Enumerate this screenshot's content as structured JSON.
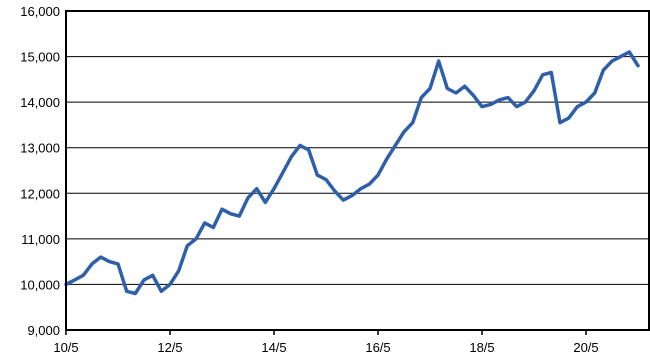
{
  "chart_data": {
    "type": "line",
    "title": "",
    "xlabel": "",
    "ylabel": "",
    "ylim": [
      9000,
      16000
    ],
    "y_ticks": [
      "9,000",
      "10,000",
      "11,000",
      "12,000",
      "13,000",
      "14,000",
      "15,000",
      "16,000"
    ],
    "x_ticks": [
      "10/5",
      "12/5",
      "14/5",
      "16/5",
      "18/5",
      "20/5"
    ],
    "grid": "horizontal",
    "legend": "none",
    "series": [
      {
        "color": "#2f5fa8",
        "x": [
          "2010-05",
          "2010-07",
          "2010-09",
          "2010-11",
          "2011-01",
          "2011-03",
          "2011-05",
          "2011-07",
          "2011-09",
          "2011-11",
          "2012-01",
          "2012-03",
          "2012-05",
          "2012-07",
          "2012-09",
          "2012-11",
          "2013-01",
          "2013-03",
          "2013-05",
          "2013-07",
          "2013-09",
          "2013-11",
          "2014-01",
          "2014-03",
          "2014-05",
          "2014-07",
          "2014-09",
          "2014-11",
          "2015-01",
          "2015-03",
          "2015-05",
          "2015-07",
          "2015-09",
          "2015-11",
          "2016-01",
          "2016-03",
          "2016-05",
          "2016-07",
          "2016-09",
          "2016-11",
          "2017-01",
          "2017-03",
          "2017-05",
          "2017-07",
          "2017-09",
          "2017-11",
          "2018-01",
          "2018-03",
          "2018-05",
          "2018-07",
          "2018-09",
          "2018-11",
          "2019-01",
          "2019-03",
          "2019-05",
          "2019-07",
          "2019-09",
          "2019-11",
          "2020-01",
          "2020-03",
          "2020-05",
          "2020-07",
          "2020-09",
          "2020-11",
          "2021-01",
          "2021-03",
          "2021-05"
        ],
        "y": [
          10000,
          10100,
          10200,
          10450,
          10600,
          10500,
          10450,
          9850,
          9800,
          10100,
          10200,
          9850,
          10000,
          10300,
          10850,
          11000,
          11350,
          11250,
          11650,
          11550,
          11500,
          11900,
          12100,
          11800,
          12100,
          12450,
          12800,
          13050,
          12950,
          12400,
          12300,
          12050,
          11850,
          11950,
          12100,
          12200,
          12400,
          12750,
          13050,
          13350,
          13550,
          14100,
          14300,
          14900,
          14300,
          14200,
          14350,
          14150,
          13900,
          13950,
          14050,
          14100,
          13900,
          14000,
          14250,
          14600,
          14650,
          13550,
          13650,
          13900,
          14000,
          14200,
          14700,
          14900,
          15000,
          15100,
          14800
        ]
      }
    ]
  }
}
